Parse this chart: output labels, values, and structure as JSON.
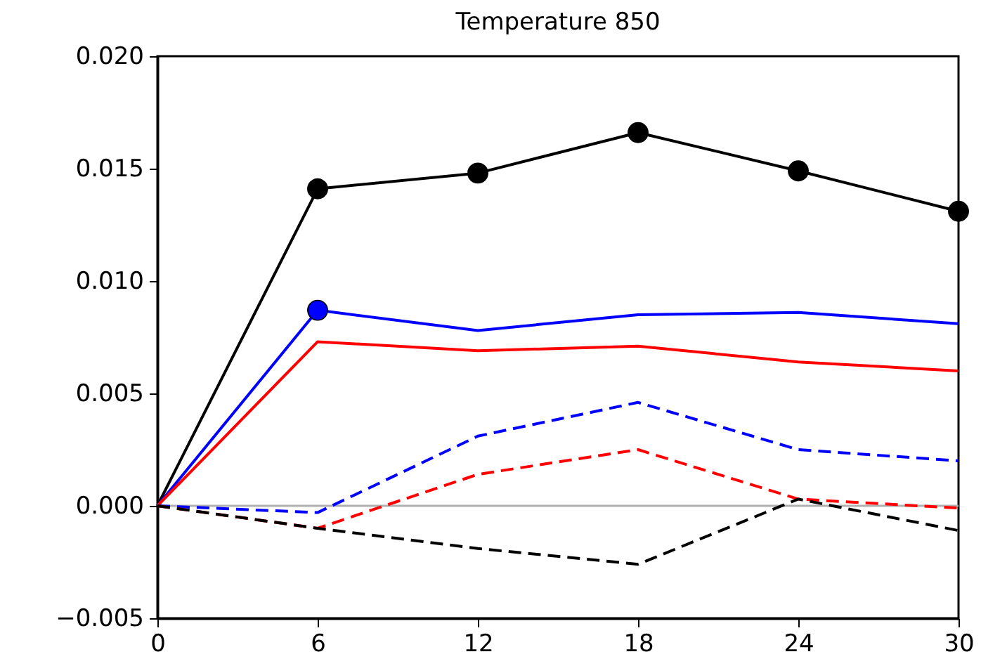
{
  "chart_data": {
    "type": "line",
    "title": "Temperature 850",
    "x": [
      0,
      6,
      12,
      18,
      24,
      30
    ],
    "xlim": [
      0,
      30
    ],
    "xticks": [
      0,
      6,
      12,
      18,
      24,
      30
    ],
    "ylim": [
      -0.005,
      0.02
    ],
    "yticks": [
      {
        "value": -0.005,
        "label": "−0.005"
      },
      {
        "value": 0,
        "label": "0.000"
      },
      {
        "value": 0.005,
        "label": "0.005"
      },
      {
        "value": 0.01,
        "label": "0.010"
      },
      {
        "value": 0.015,
        "label": "0.015"
      },
      {
        "value": 0.02,
        "label": "0.020"
      }
    ],
    "grid": false,
    "marker": "none",
    "ref_lines": [
      {
        "axis": "y",
        "value": 0,
        "color": "#b0b0b0",
        "line_style": "solid"
      }
    ],
    "series": [
      {
        "color": "#000000",
        "line_style": "solid",
        "values": [
          0,
          0.0141,
          0.0148,
          0.0166,
          0.0149,
          0.0131
        ]
      },
      {
        "color": "#0000ff",
        "line_style": "solid",
        "values": [
          0,
          0.0087,
          0.0078,
          0.0085,
          0.0086,
          0.0081
        ]
      },
      {
        "color": "#ff0000",
        "line_style": "solid",
        "values": [
          0,
          0.0073,
          0.0069,
          0.0071,
          0.0064,
          0.006
        ]
      },
      {
        "color": "#0000ff",
        "line_style": "dashed",
        "values": [
          0,
          -0.0003,
          0.0031,
          0.0046,
          0.0025,
          0.002
        ]
      },
      {
        "color": "#ff0000",
        "line_style": "dashed",
        "values": [
          0,
          -0.001,
          0.0014,
          0.0025,
          0.0003,
          -0.0001
        ]
      },
      {
        "color": "#000000",
        "line_style": "dashed",
        "values": [
          0,
          -0.001,
          -0.0019,
          -0.0026,
          0.0003,
          -0.0011
        ]
      },
      {
        "type": "scatter",
        "marker": "circle",
        "color": "#000000",
        "x": [
          6,
          12,
          18,
          24,
          30
        ],
        "values": [
          0.0141,
          0.0148,
          0.0166,
          0.0149,
          0.0131
        ]
      },
      {
        "type": "scatter",
        "marker": "circle",
        "color": "#0000ff",
        "x": [
          6
        ],
        "values": [
          0.0087
        ]
      }
    ]
  }
}
